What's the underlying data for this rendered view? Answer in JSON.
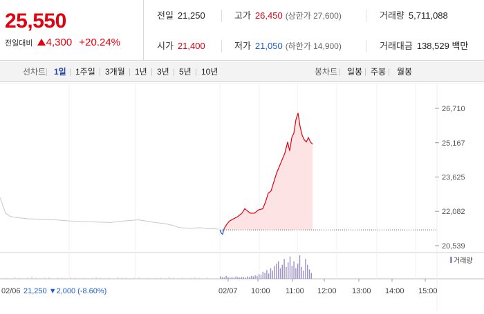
{
  "price": {
    "current": "25,550",
    "change_label": "전일대비",
    "change": "4,300",
    "change_pct": "+20.24%"
  },
  "stats": {
    "prev_close": {
      "label": "전일",
      "value": "21,250"
    },
    "high": {
      "label": "고가",
      "value": "26,450",
      "limit_text": "(상한가 27,600)"
    },
    "volume": {
      "label": "거래량",
      "value": "5,711,088"
    },
    "open": {
      "label": "시가",
      "value": "21,400"
    },
    "low": {
      "label": "저가",
      "value": "21,050",
      "limit_text": "(하한가 14,900)"
    },
    "trade_value": {
      "label": "거래대금",
      "value": "138,529 백만"
    }
  },
  "tabs": {
    "line_label": "선차트",
    "line_periods": [
      "1일",
      "1주일",
      "3개월",
      "1년",
      "3년",
      "5년",
      "10년"
    ],
    "active_period": "1일",
    "candle_label": "봉차트",
    "candle_periods": [
      "일봉",
      "주봉",
      "월봉"
    ]
  },
  "chart_data": {
    "type": "line",
    "price_ticks": [
      "26,710",
      "25,167",
      "23,625",
      "22,082",
      "20,539"
    ],
    "ylim": [
      20539,
      26710
    ],
    "prev_close": 21250,
    "time_labels": [
      "02/07",
      "10:00",
      "11:00",
      "12:00",
      "13:00",
      "14:00",
      "15:00"
    ],
    "prev_day_label": "02/06",
    "prev_day_info": "21,250 ▼2,000 (-8.60%)",
    "volume_legend": "거래량",
    "colors": {
      "up": "#e3000f",
      "down": "#1a5bd1",
      "prev": "#c8c8c8",
      "fill": "#fde3e3",
      "volume": "#9b8fc6",
      "volume_prev": "#d4d4d4"
    },
    "prev_day_series": [
      [
        0,
        22700
      ],
      [
        4,
        22350
      ],
      [
        8,
        22000
      ],
      [
        15,
        21850
      ],
      [
        25,
        21800
      ],
      [
        40,
        21750
      ],
      [
        60,
        21720
      ],
      [
        80,
        21700
      ],
      [
        100,
        21650
      ],
      [
        120,
        21620
      ],
      [
        140,
        21600
      ],
      [
        160,
        21580
      ],
      [
        180,
        21650
      ],
      [
        200,
        21700
      ],
      [
        220,
        21600
      ],
      [
        240,
        21520
      ],
      [
        250,
        21450
      ],
      [
        260,
        21350
      ],
      [
        275,
        21320
      ],
      [
        290,
        21350
      ],
      [
        300,
        21300
      ],
      [
        310,
        21300
      ],
      [
        316,
        21280
      ]
    ],
    "today_series": [
      [
        0,
        21250
      ],
      [
        2,
        21100
      ],
      [
        4,
        21050
      ],
      [
        6,
        21300
      ],
      [
        10,
        21500
      ],
      [
        14,
        21650
      ],
      [
        20,
        21750
      ],
      [
        26,
        21850
      ],
      [
        32,
        22000
      ],
      [
        36,
        22200
      ],
      [
        40,
        22100
      ],
      [
        44,
        22000
      ],
      [
        50,
        22000
      ],
      [
        56,
        22150
      ],
      [
        62,
        22200
      ],
      [
        66,
        22500
      ],
      [
        70,
        22900
      ],
      [
        74,
        23000
      ],
      [
        78,
        23400
      ],
      [
        82,
        23800
      ],
      [
        86,
        24100
      ],
      [
        90,
        24400
      ],
      [
        94,
        24700
      ],
      [
        98,
        25200
      ],
      [
        101,
        24800
      ],
      [
        104,
        25400
      ],
      [
        107,
        25600
      ],
      [
        110,
        26200
      ],
      [
        113,
        26500
      ],
      [
        116,
        25900
      ],
      [
        119,
        25500
      ],
      [
        122,
        25300
      ],
      [
        125,
        25200
      ],
      [
        128,
        25400
      ],
      [
        131,
        25200
      ],
      [
        134,
        25100
      ]
    ],
    "volume_prev_values": [
      1,
      2,
      1,
      3,
      2,
      1,
      2,
      4,
      2,
      1,
      2,
      3,
      1,
      2,
      2,
      1,
      3,
      2,
      1,
      2,
      1,
      2,
      3,
      2,
      1,
      2,
      1,
      3,
      2,
      2,
      1,
      2,
      3,
      1,
      2,
      1,
      2,
      2,
      1,
      3,
      2,
      1,
      2,
      1,
      2,
      3,
      2,
      1,
      2,
      1
    ],
    "volume_today_values": [
      4,
      3,
      2,
      5,
      3,
      2,
      3,
      2,
      4,
      3,
      2,
      3,
      3,
      2,
      4,
      3,
      5,
      4,
      6,
      5,
      8,
      7,
      12,
      10,
      15,
      9,
      18,
      14,
      22,
      26,
      30,
      18,
      24,
      34,
      20,
      28,
      38,
      22,
      30,
      18,
      26,
      40,
      20,
      14,
      34,
      24,
      16,
      10
    ]
  }
}
